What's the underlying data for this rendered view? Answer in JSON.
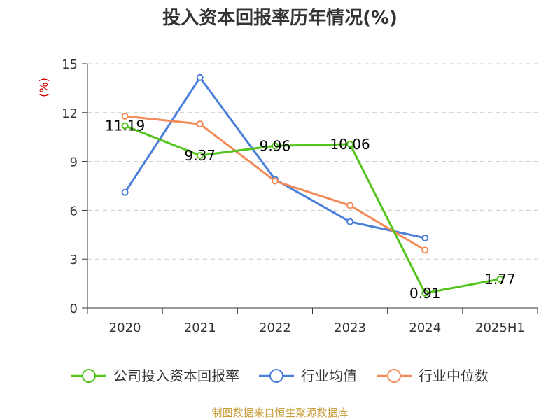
{
  "chart_data": {
    "type": "line",
    "title": "投入资本回报率历年情况(%)",
    "ylabel": "(%)",
    "categories": [
      "2020",
      "2021",
      "2022",
      "2023",
      "2024",
      "2025H1"
    ],
    "ylim": [
      0,
      15
    ],
    "yticks": [
      0,
      3,
      6,
      9,
      12,
      15
    ],
    "grid": true,
    "legend_position": "bottom",
    "series": [
      {
        "name": "公司投入资本回报率",
        "color": "#52c41a",
        "values": [
          11.19,
          9.37,
          9.96,
          10.06,
          0.91,
          1.77
        ],
        "labels": [
          "11.19",
          "9.37",
          "9.96",
          "10.06",
          "0.91",
          "1.77"
        ]
      },
      {
        "name": "行业均值",
        "color": "#4a7fd9",
        "values": [
          7.1,
          14.15,
          7.9,
          5.3,
          4.3,
          null
        ]
      },
      {
        "name": "行业中位数",
        "color": "#f28a5a",
        "values": [
          11.78,
          11.3,
          7.8,
          6.3,
          3.55,
          null
        ]
      }
    ],
    "source": "制图数据来自恒生聚源数据库"
  }
}
